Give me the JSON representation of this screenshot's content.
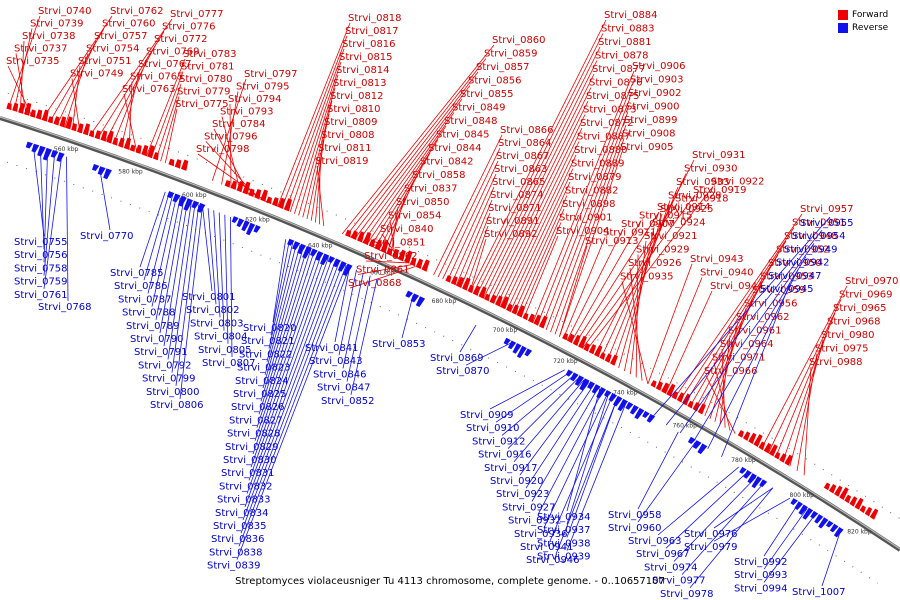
{
  "caption": "Streptomyces violaceusniger Tu 4113 chromosome, complete genome. - 0..10657107",
  "legend": {
    "forward": {
      "label": "Forward",
      "color": "#ee0000"
    },
    "reverse": {
      "label": "Reverse",
      "color": "#1111ee"
    }
  },
  "axis_ticks": [
    "560 kbp",
    "580 kbp",
    "600 kbp",
    "620 kbp",
    "640 kbp",
    "660 kbp",
    "680 kbp",
    "700 kbp",
    "720 kbp",
    "740 kbp",
    "760 kbp",
    "780 kbp",
    "800 kbp",
    "820 kbp"
  ],
  "forward_labels": [
    "Strvi_0740",
    "Strvi_0739",
    "Strvi_0738",
    "Strvi_0737",
    "Strvi_0735",
    "Strvi_0762",
    "Strvi_0760",
    "Strvi_0757",
    "Strvi_0754",
    "Strvi_0751",
    "Strvi_0749",
    "Strvi_0777",
    "Strvi_0776",
    "Strvi_0772",
    "Strvi_0769",
    "Strvi_0767",
    "Strvi_0765",
    "Strvi_0763",
    "Strvi_0783",
    "Strvi_0781",
    "Strvi_0780",
    "Strvi_0779",
    "Strvi_0775",
    "Strvi_0797",
    "Strvi_0795",
    "Strvi_0794",
    "Strvi_0793",
    "Strvi_0784",
    "Strvi_0796",
    "Strvi_0798",
    "Strvi_0818",
    "Strvi_0817",
    "Strvi_0816",
    "Strvi_0815",
    "Strvi_0814",
    "Strvi_0813",
    "Strvi_0812",
    "Strvi_0810",
    "Strvi_0809",
    "Strvi_0808",
    "Strvi_0811",
    "Strvi_0819",
    "Strvi_0860",
    "Strvi_0859",
    "Strvi_0857",
    "Strvi_0856",
    "Strvi_0855",
    "Strvi_0849",
    "Strvi_0848",
    "Strvi_0845",
    "Strvi_0844",
    "Strvi_0842",
    "Strvi_0858",
    "Strvi_0837",
    "Strvi_0850",
    "Strvi_0854",
    "Strvi_0840",
    "Strvi_0851",
    "Strvi_0862",
    "Strvi_0861",
    "Strvi_0868",
    "Strvi_0866",
    "Strvi_0864",
    "Strvi_0867",
    "Strvi_0863",
    "Strvi_0865",
    "Strvi_0874",
    "Strvi_0871",
    "Strvi_0891",
    "Strvi_0892",
    "Strvi_0884",
    "Strvi_0883",
    "Strvi_0881",
    "Strvi_0878",
    "Strvi_0877",
    "Strvi_0876",
    "Strvi_0875",
    "Strvi_0873",
    "Strvi_0872",
    "Strvi_0887",
    "Strvi_0880",
    "Strvi_0889",
    "Strvi_0879",
    "Strvi_0882",
    "Strvi_0898",
    "Strvi_0901",
    "Strvi_0904",
    "Strvi_0906",
    "Strvi_0903",
    "Strvi_0902",
    "Strvi_0900",
    "Strvi_0899",
    "Strvi_0908",
    "Strvi_0905",
    "Strvi_0913",
    "Strvi_0911",
    "Strvi_0907",
    "Strvi_0915",
    "Strvi_0914",
    "Strvi_0918",
    "Strvi_0919",
    "Strvi_0922",
    "Strvi_0931",
    "Strvi_0930",
    "Strvi_0933",
    "Strvi_0928",
    "Strvi_0925",
    "Strvi_0924",
    "Strvi_0921",
    "Strvi_0929",
    "Strvi_0926",
    "Strvi_0935",
    "Strvi_0943",
    "Strvi_0940",
    "Strvi_0944",
    "Strvi_0957",
    "Strvi_0951",
    "Strvi_0948",
    "Strvi_0952",
    "Strvi_0950",
    "Strvi_0953",
    "Strvi_0959",
    "Strvi_0956",
    "Strvi_0962",
    "Strvi_0961",
    "Strvi_0964",
    "Strvi_0971",
    "Strvi_0966",
    "Strvi_0970",
    "Strvi_0969",
    "Strvi_0965",
    "Strvi_0968",
    "Strvi_0980",
    "Strvi_0975",
    "Strvi_0988"
  ],
  "reverse_labels": [
    "Strvi_0755",
    "Strvi_0756",
    "Strvi_0758",
    "Strvi_0759",
    "Strvi_0761",
    "Strvi_0768",
    "Strvi_0770",
    "Strvi_0785",
    "Strvi_0786",
    "Strvi_0787",
    "Strvi_0788",
    "Strvi_0789",
    "Strvi_0790",
    "Strvi_0791",
    "Strvi_0792",
    "Strvi_0799",
    "Strvi_0800",
    "Strvi_0806",
    "Strvi_0801",
    "Strvi_0802",
    "Strvi_0803",
    "Strvi_0804",
    "Strvi_0805",
    "Strvi_0807",
    "Strvi_0820",
    "Strvi_0821",
    "Strvi_0822",
    "Strvi_0823",
    "Strvi_0824",
    "Strvi_0825",
    "Strvi_0826",
    "Strvi_0827",
    "Strvi_0828",
    "Strvi_0829",
    "Strvi_0830",
    "Strvi_0831",
    "Strvi_0832",
    "Strvi_0833",
    "Strvi_0834",
    "Strvi_0835",
    "Strvi_0836",
    "Strvi_0838",
    "Strvi_0839",
    "Strvi_0841",
    "Strvi_0843",
    "Strvi_0846",
    "Strvi_0847",
    "Strvi_0852",
    "Strvi_0853",
    "Strvi_0869",
    "Strvi_0870",
    "Strvi_0909",
    "Strvi_0910",
    "Strvi_0912",
    "Strvi_0916",
    "Strvi_0917",
    "Strvi_0920",
    "Strvi_0923",
    "Strvi_0927",
    "Strvi_0932",
    "Strvi_0936",
    "Strvi_0941",
    "Strvi_0946",
    "Strvi_0934",
    "Strvi_0937",
    "Strvi_0938",
    "Strvi_0939",
    "Strvi_0958",
    "Strvi_0960",
    "Strvi_0963",
    "Strvi_0967",
    "Strvi_0974",
    "Strvi_0977",
    "Strvi_0978",
    "Strvi_0976",
    "Strvi_0979",
    "Strvi_0992",
    "Strvi_0993",
    "Strvi_0994",
    "Strvi_1007",
    "Strvi_0955",
    "Strvi_0954",
    "Strvi_0949",
    "Strvi_0942",
    "Strvi_0947",
    "Strvi_0945"
  ]
}
